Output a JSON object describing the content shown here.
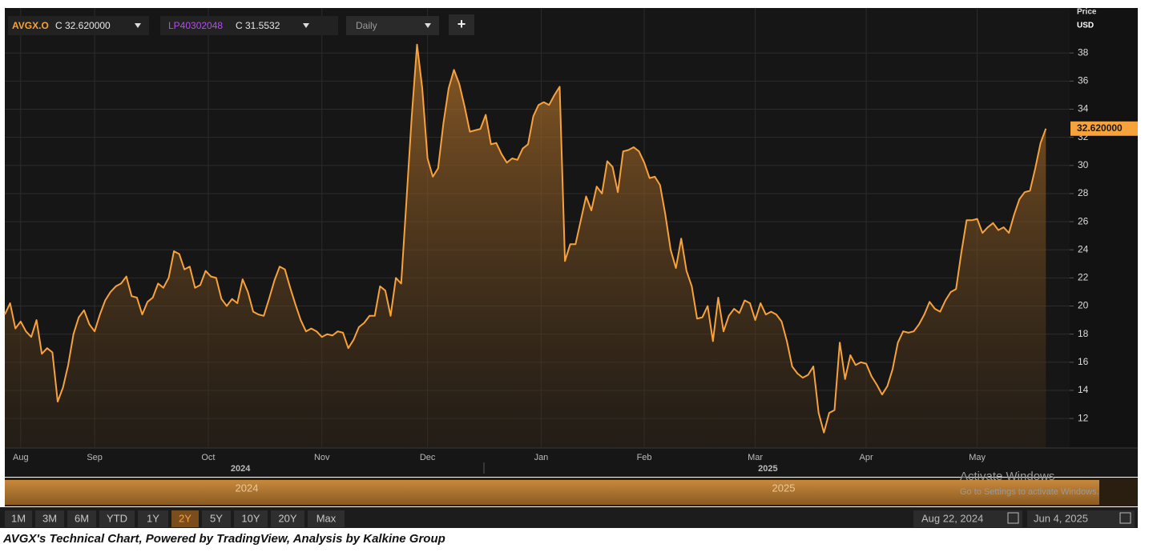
{
  "toolbar": {
    "symbol": "AVGX.O",
    "close": "C 32.620000",
    "compare_symbol": "LP40302048",
    "compare_close": "C 31.5532",
    "interval": "Daily",
    "add": "+"
  },
  "chart_data": {
    "type": "line",
    "axis_title": "Price",
    "currency": "USD",
    "last_price_label": "32.620000",
    "series": [
      {
        "name": "AVGX.O",
        "color": "#f7a23b",
        "values": [
          19.4,
          20.2,
          18.4,
          18.9,
          18.2,
          17.8,
          19.0,
          16.6,
          17.0,
          16.7,
          13.2,
          14.2,
          15.8,
          18.0,
          19.2,
          19.7,
          18.7,
          18.2,
          19.4,
          20.4,
          21.0,
          21.4,
          21.6,
          22.1,
          20.7,
          20.6,
          19.4,
          20.3,
          20.6,
          21.6,
          21.3,
          22.0,
          23.9,
          23.7,
          22.6,
          22.8,
          21.3,
          21.5,
          22.5,
          22.1,
          22.0,
          20.5,
          20.0,
          20.5,
          20.2,
          21.9,
          21.0,
          19.6,
          19.4,
          19.3,
          20.5,
          21.8,
          22.8,
          22.6,
          21.3,
          20.1,
          19.0,
          18.2,
          18.4,
          18.2,
          17.8,
          18.0,
          17.9,
          18.2,
          18.1,
          17.0,
          17.6,
          18.5,
          18.8,
          19.3,
          19.3,
          21.4,
          21.1,
          19.3,
          22.0,
          21.6,
          27.5,
          33.5,
          38.6,
          35.5,
          30.5,
          29.2,
          29.8,
          33.0,
          35.5,
          36.8,
          35.8,
          34.2,
          32.4,
          32.5,
          32.6,
          33.6,
          31.5,
          31.6,
          30.8,
          30.2,
          30.5,
          30.4,
          31.2,
          31.5,
          33.5,
          34.3,
          34.5,
          34.3,
          35.0,
          35.6,
          23.2,
          24.4,
          24.4,
          26.1,
          27.8,
          26.8,
          28.5,
          28.0,
          30.3,
          29.9,
          28.1,
          31.0,
          31.1,
          31.3,
          31.0,
          30.2,
          29.1,
          29.2,
          28.6,
          26.5,
          24.0,
          22.7,
          24.8,
          22.5,
          21.4,
          19.1,
          19.2,
          20.0,
          17.5,
          20.6,
          18.2,
          19.3,
          19.8,
          19.5,
          20.4,
          20.2,
          19.0,
          20.2,
          19.4,
          19.6,
          19.4,
          18.9,
          17.5,
          15.7,
          15.2,
          14.9,
          15.1,
          15.7,
          12.4,
          11.0,
          12.4,
          12.6,
          17.4,
          14.8,
          16.5,
          15.8,
          16.0,
          15.9,
          15.0,
          14.4,
          13.7,
          14.3,
          15.5,
          17.4,
          18.2,
          18.1,
          18.2,
          18.7,
          19.4,
          20.3,
          19.8,
          19.6,
          20.4,
          21.0,
          21.2,
          23.8,
          26.1,
          26.1,
          26.2,
          25.2,
          25.6,
          25.9,
          25.4,
          25.6,
          25.2,
          26.5,
          27.6,
          28.1,
          28.2,
          29.8,
          31.6,
          32.62
        ]
      }
    ],
    "xlim": [
      0,
      201.5
    ],
    "xticks": [
      {
        "value": 3,
        "label": "Aug"
      },
      {
        "value": 17,
        "label": "Sep"
      },
      {
        "value": 38.5,
        "label": "Oct"
      },
      {
        "value": 60,
        "label": "Nov"
      },
      {
        "value": 80,
        "label": "Dec"
      },
      {
        "value": 101.5,
        "label": "Jan"
      },
      {
        "value": 121,
        "label": "Feb"
      },
      {
        "value": 142,
        "label": "Mar"
      },
      {
        "value": 163,
        "label": "Apr"
      },
      {
        "value": 184,
        "label": "May"
      }
    ],
    "year_ticks": [
      {
        "value": 44.6,
        "label": "2024"
      },
      {
        "value": 144.4,
        "label": "2025"
      }
    ],
    "ylim": [
      9.9,
      41.2
    ],
    "yticks": [
      12,
      14,
      16,
      18,
      20,
      22,
      24,
      26,
      28,
      30,
      32,
      34,
      36,
      38
    ],
    "grid": true
  },
  "navigator": {
    "labels": [
      "2024",
      "2025"
    ]
  },
  "watermark": {
    "title": "Activate Windows",
    "text": "Go to Settings to activate Windows."
  },
  "range_buttons": {
    "items": [
      "1M",
      "3M",
      "6M",
      "YTD",
      "1Y",
      "2Y",
      "5Y",
      "10Y",
      "20Y",
      "Max"
    ],
    "selected": "2Y"
  },
  "date_range": {
    "from": "Aug 22, 2024",
    "to": "Jun 4, 2025"
  },
  "caption": "AVGX's Technical Chart, Powered by TradingView, Analysis by Kalkine Group"
}
